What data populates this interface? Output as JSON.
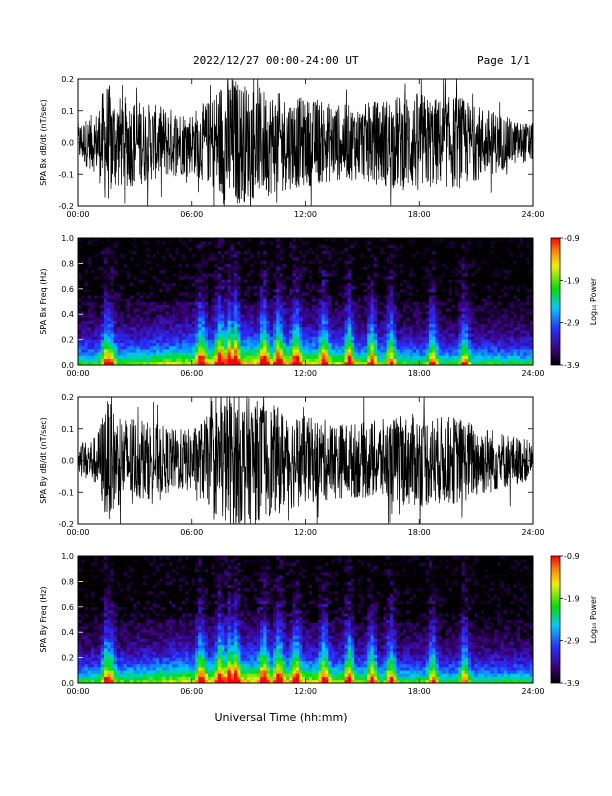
{
  "header": {
    "title": "2022/12/27  00:00-24:00 UT",
    "page": "Page 1/1"
  },
  "xlabel": "Universal Time (hh:mm)",
  "chart_data": [
    {
      "type": "line",
      "ylabel": "SPA Bx dB/dt (nT/sec)",
      "ylim": [
        -0.2,
        0.2
      ],
      "yticks": [
        "0.2",
        "0.1",
        "0.0",
        "-0.1",
        "-0.2"
      ],
      "yvalues": [
        0.2,
        0.1,
        0.0,
        -0.1,
        -0.2
      ],
      "xticks": [
        "00:00",
        "06:00",
        "12:00",
        "18:00",
        "24:00"
      ],
      "x_range_hours": [
        0,
        24
      ],
      "envelope": {
        "hours": [
          0,
          1,
          1.5,
          2,
          3,
          4,
          5,
          6,
          7,
          7.5,
          8,
          8.5,
          9,
          10,
          11,
          12,
          13,
          14,
          15,
          16,
          17,
          18,
          19,
          20,
          21,
          22,
          23,
          24
        ],
        "amplitude": [
          0.06,
          0.1,
          0.2,
          0.15,
          0.14,
          0.12,
          0.11,
          0.1,
          0.14,
          0.2,
          0.22,
          0.2,
          0.18,
          0.17,
          0.15,
          0.14,
          0.13,
          0.12,
          0.12,
          0.14,
          0.15,
          0.16,
          0.14,
          0.15,
          0.12,
          0.1,
          0.07,
          0.06
        ]
      }
    },
    {
      "type": "heatmap",
      "ylabel": "SPA Bx Freq (Hz)",
      "ylim": [
        0.0,
        1.0
      ],
      "yticks": [
        "1.0",
        "0.8",
        "0.6",
        "0.4",
        "0.2",
        "0.0"
      ],
      "xticks": [
        "00:00",
        "06:00",
        "12:00",
        "18:00",
        "24:00"
      ],
      "colorbar": {
        "label": "Log₁₀ Power",
        "range": [
          -3.9,
          -0.9
        ],
        "ticks": [
          "-0.9",
          "-1.9",
          "-2.9",
          "-3.9"
        ]
      },
      "activity_hours": [
        1.5,
        1.7,
        6.5,
        7.5,
        8.0,
        8.3,
        9.8,
        10.6,
        11.5,
        13.0,
        14.3,
        15.5,
        16.5,
        18.7,
        20.4
      ]
    },
    {
      "type": "line",
      "ylabel": "SPA By dB/dt (nT/sec)",
      "ylim": [
        -0.2,
        0.2
      ],
      "yticks": [
        "0.2",
        "0.1",
        "0.0",
        "-0.1",
        "-0.2"
      ],
      "yvalues": [
        0.2,
        0.1,
        0.0,
        -0.1,
        -0.2
      ],
      "xticks": [
        "00:00",
        "06:00",
        "12:00",
        "18:00",
        "24:00"
      ],
      "x_range_hours": [
        0,
        24
      ],
      "envelope": {
        "hours": [
          0,
          1,
          1.5,
          2,
          3,
          4,
          5,
          6,
          7,
          7.5,
          8,
          8.5,
          9,
          10,
          11,
          12,
          13,
          14,
          15,
          16,
          17,
          18,
          19,
          20,
          21,
          22,
          23,
          24
        ],
        "amplitude": [
          0.05,
          0.08,
          0.2,
          0.15,
          0.13,
          0.12,
          0.1,
          0.1,
          0.15,
          0.2,
          0.22,
          0.21,
          0.2,
          0.18,
          0.16,
          0.14,
          0.13,
          0.12,
          0.12,
          0.13,
          0.14,
          0.15,
          0.14,
          0.14,
          0.12,
          0.1,
          0.08,
          0.06
        ]
      }
    },
    {
      "type": "heatmap",
      "ylabel": "SPA By Freq (Hz)",
      "ylim": [
        0.0,
        1.0
      ],
      "yticks": [
        "1.0",
        "0.8",
        "0.6",
        "0.4",
        "0.2",
        "0.0"
      ],
      "xticks": [
        "00:00",
        "06:00",
        "12:00",
        "18:00",
        "24:00"
      ],
      "colorbar": {
        "label": "Log₁₀ Power",
        "range": [
          -3.9,
          -0.9
        ],
        "ticks": [
          "-0.9",
          "-1.9",
          "-2.9",
          "-3.9"
        ]
      },
      "activity_hours": [
        1.5,
        1.7,
        6.5,
        7.5,
        8.0,
        8.3,
        9.8,
        10.6,
        11.5,
        13.0,
        14.3,
        15.5,
        16.5,
        18.7,
        20.4
      ]
    }
  ]
}
